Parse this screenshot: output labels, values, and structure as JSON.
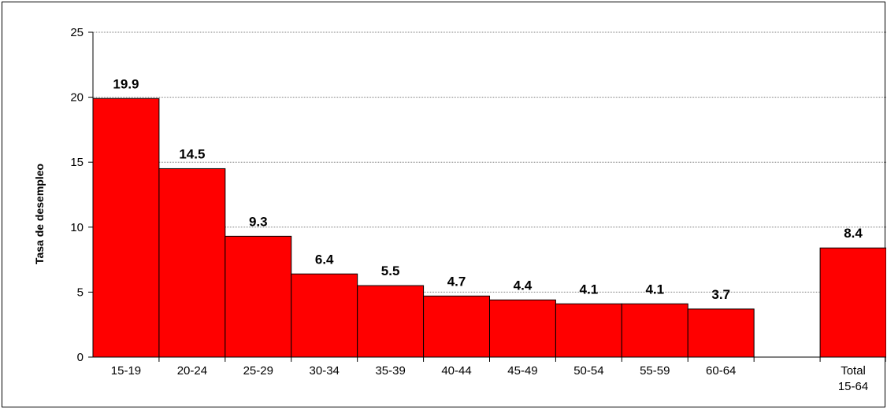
{
  "chart_data": {
    "type": "bar",
    "title": "",
    "xlabel": "",
    "ylabel": "Tasa de desempleo",
    "ylim": [
      0,
      25
    ],
    "yticks": [
      0,
      5,
      10,
      15,
      20,
      25
    ],
    "grid": true,
    "legend": "none",
    "categories": [
      {
        "label": "15-19",
        "value": 19.9,
        "value_label": "19.9"
      },
      {
        "label": "20-24",
        "value": 14.5,
        "value_label": "14.5"
      },
      {
        "label": "25-29",
        "value": 9.3,
        "value_label": "9.3"
      },
      {
        "label": "30-34",
        "value": 6.4,
        "value_label": "6.4"
      },
      {
        "label": "35-39",
        "value": 5.5,
        "value_label": "5.5"
      },
      {
        "label": "40-44",
        "value": 4.7,
        "value_label": "4.7"
      },
      {
        "label": "45-49",
        "value": 4.4,
        "value_label": "4.4"
      },
      {
        "label": "50-54",
        "value": 4.1,
        "value_label": "4.1"
      },
      {
        "label": "55-59",
        "value": 4.1,
        "value_label": "4.1"
      },
      {
        "label": "60-64",
        "value": 3.7,
        "value_label": "3.7"
      },
      {
        "label": "",
        "value": null,
        "value_label": ""
      },
      {
        "label": "Total\n15-64",
        "value": 8.4,
        "value_label": "8.4"
      }
    ],
    "bar_color": "#ff0000",
    "bar_outline": "#000000"
  }
}
